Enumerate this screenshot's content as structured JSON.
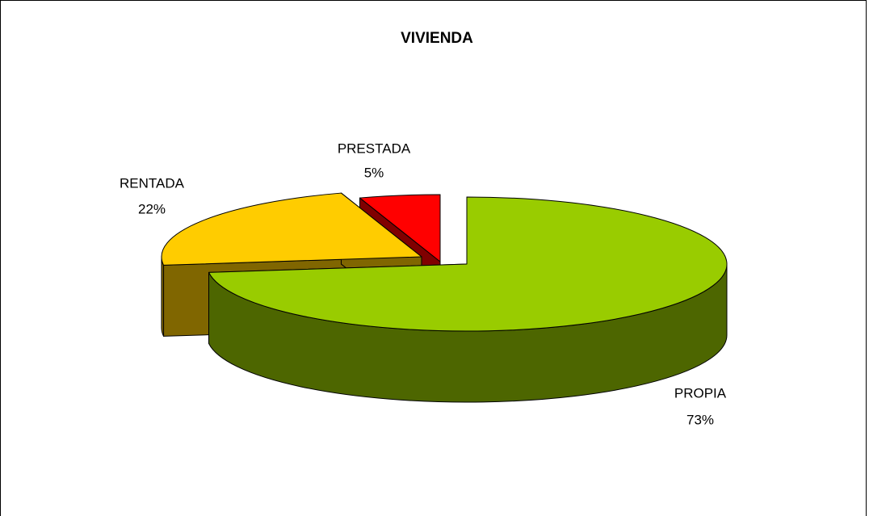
{
  "chart_data": {
    "type": "pie3d",
    "title": "VIVIENDA",
    "categories": [
      "PROPIA",
      "RENTADA",
      "PRESTADA"
    ],
    "values": [
      73,
      22,
      5
    ],
    "value_labels": [
      "73%",
      "22%",
      "5%"
    ],
    "colors": [
      "#99cc00",
      "#ffcc00",
      "#ff0000"
    ],
    "side_colors": [
      "#4d6600",
      "#806600",
      "#800000"
    ]
  }
}
